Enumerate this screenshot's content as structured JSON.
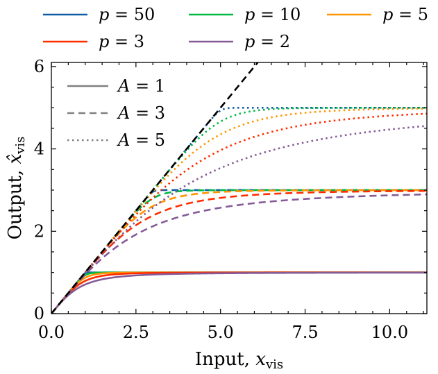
{
  "chart_data": {
    "type": "line",
    "function": "y = x / (1 + (x/A)^p)^(1/p)",
    "xlabel": {
      "prefix": "Input, ",
      "var": "x",
      "sub": "vis"
    },
    "ylabel": {
      "prefix": "Output, ",
      "var": "x̂",
      "sub": "vis"
    },
    "xlim": [
      0,
      11.1
    ],
    "ylim": [
      0,
      6.1
    ],
    "xticks": [
      0,
      2.5,
      5,
      7.5,
      10
    ],
    "xtick_labels": [
      "0.0",
      "2.5",
      "5.0",
      "7.5",
      "10.0"
    ],
    "yticks": [
      0,
      2,
      4,
      6
    ],
    "ytick_labels": [
      "0",
      "2",
      "4",
      "6"
    ],
    "grid": false,
    "p_series": [
      {
        "p": 50,
        "label": "p = 50",
        "color": "#0c5da5"
      },
      {
        "p": 10,
        "label": "p = 10",
        "color": "#00b945"
      },
      {
        "p": 5,
        "label": "p = 5",
        "color": "#ff9500"
      },
      {
        "p": 3,
        "label": "p = 3",
        "color": "#ff2c00"
      },
      {
        "p": 2,
        "label": "p = 2",
        "color": "#845b97"
      }
    ],
    "A_series": [
      {
        "A": 1,
        "label": "A = 1",
        "style": "solid"
      },
      {
        "A": 3,
        "label": "A = 3",
        "style": "dashed"
      },
      {
        "A": 5,
        "label": "A = 5",
        "style": "dotted"
      }
    ],
    "identity_line": {
      "label": "y = x",
      "color": "#000000",
      "style": "dashed"
    },
    "legend_top": "above plot, 3 columns",
    "legend_inner": "upper-left"
  }
}
